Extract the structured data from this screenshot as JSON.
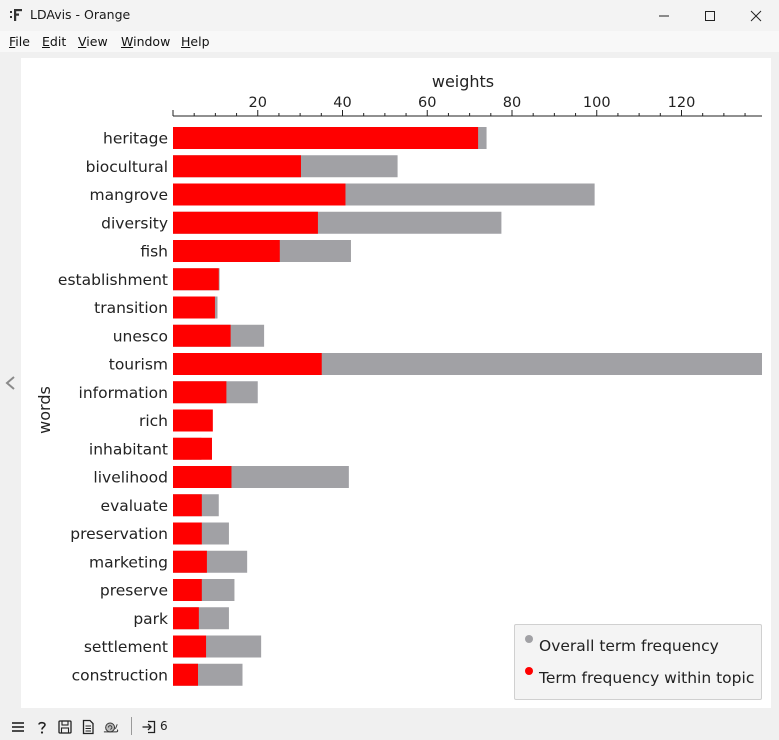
{
  "window": {
    "title": "LDAvis - Orange",
    "icon": "orange-widget-icon",
    "controls": [
      "minimize-icon",
      "maximize-icon",
      "close-icon"
    ]
  },
  "menu": {
    "items": [
      {
        "key": "F",
        "rest": "ile"
      },
      {
        "key": "E",
        "rest": "dit"
      },
      {
        "key": "V",
        "rest": "iew"
      },
      {
        "key": "W",
        "rest": "indow"
      },
      {
        "key": "H",
        "rest": "elp"
      }
    ]
  },
  "colors": {
    "topic": "#ff0000",
    "overall": "#a1a1a5",
    "axis": "#222222"
  },
  "chart_data": {
    "type": "bar",
    "orientation": "horizontal",
    "xlabel": "weights",
    "ylabel": "words",
    "xticks": [
      "20",
      "40",
      "60",
      "80",
      "100",
      "120"
    ],
    "xlim": [
      0,
      139
    ],
    "x_axis_position": "top",
    "grid": false,
    "legend_placement": "bottom-right",
    "categories": [
      "heritage",
      "biocultural",
      "mangrove",
      "diversity",
      "fish",
      "establishment",
      "transition",
      "unesco",
      "tourism",
      "information",
      "rich",
      "inhabitant",
      "livelihood",
      "evaluate",
      "preservation",
      "marketing",
      "preserve",
      "park",
      "settlement",
      "construction"
    ],
    "series": [
      {
        "name": "Overall term frequency",
        "values": [
          74,
          53,
          99.5,
          77.5,
          42,
          11,
          10.5,
          21.5,
          139,
          20,
          6.3,
          6.7,
          41.5,
          10.8,
          13.2,
          17.5,
          14.5,
          13.2,
          20.8,
          16.4
        ]
      },
      {
        "name": "Term frequency within topic",
        "values": [
          72,
          30.2,
          40.7,
          34.2,
          25.2,
          10.8,
          9.9,
          13.6,
          35.1,
          12.6,
          9.4,
          9.2,
          13.8,
          6.8,
          6.8,
          8.0,
          6.8,
          6.1,
          7.8,
          5.9
        ]
      }
    ]
  },
  "statusbar": {
    "icons": [
      "menu-icon",
      "help-icon",
      "save-icon",
      "report-icon",
      "snail-icon",
      "input-arrow-icon"
    ],
    "count": "6"
  }
}
